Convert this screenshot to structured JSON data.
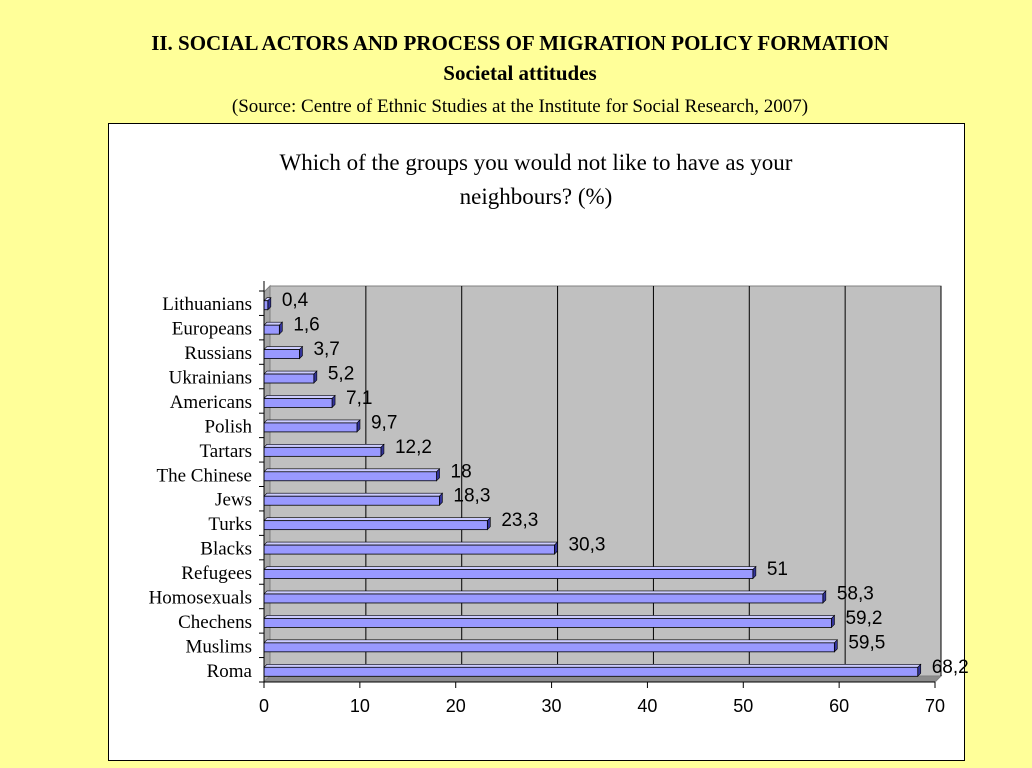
{
  "page": {
    "title": "II. SOCIAL ACTORS AND PROCESS OF MIGRATION POLICY FORMATION",
    "subtitle": "Societal attitudes",
    "source": "(Source: Centre of Ethnic Studies at the Institute for Social Research, 2007)"
  },
  "chart_data": {
    "type": "bar",
    "orientation": "horizontal",
    "title_lines": [
      "Which of the groups you would not like to have as your",
      "neighbours? (%)"
    ],
    "categories": [
      "Lithuanians",
      "Europeans",
      "Russians",
      "Ukrainians",
      "Americans",
      "Polish",
      "Tartars",
      "The Chinese",
      "Jews",
      "Turks",
      "Blacks",
      "Refugees",
      "Homosexuals",
      "Chechens",
      "Muslims",
      "Roma"
    ],
    "values": [
      0.4,
      1.6,
      3.7,
      5.2,
      7.1,
      9.7,
      12.2,
      18,
      18.3,
      23.3,
      30.3,
      51,
      58.3,
      59.2,
      59.5,
      68.2
    ],
    "value_labels": [
      "0,4",
      "1,6",
      "3,7",
      "5,2",
      "7,1",
      "9,7",
      "12,2",
      "18",
      "18,3",
      "23,3",
      "30,3",
      "51",
      "58,3",
      "59,2",
      "59,5",
      "68,2"
    ],
    "xlim": [
      0,
      70
    ],
    "xticks": [
      0,
      10,
      20,
      30,
      40,
      50,
      60,
      70
    ],
    "grid": "vertical",
    "legend": "none",
    "colors": {
      "bar_front": "#9999ff",
      "bar_top": "#ccccff",
      "bar_side": "#333399",
      "plot_wall": "#c0c0c0",
      "grid": "#000000"
    }
  }
}
